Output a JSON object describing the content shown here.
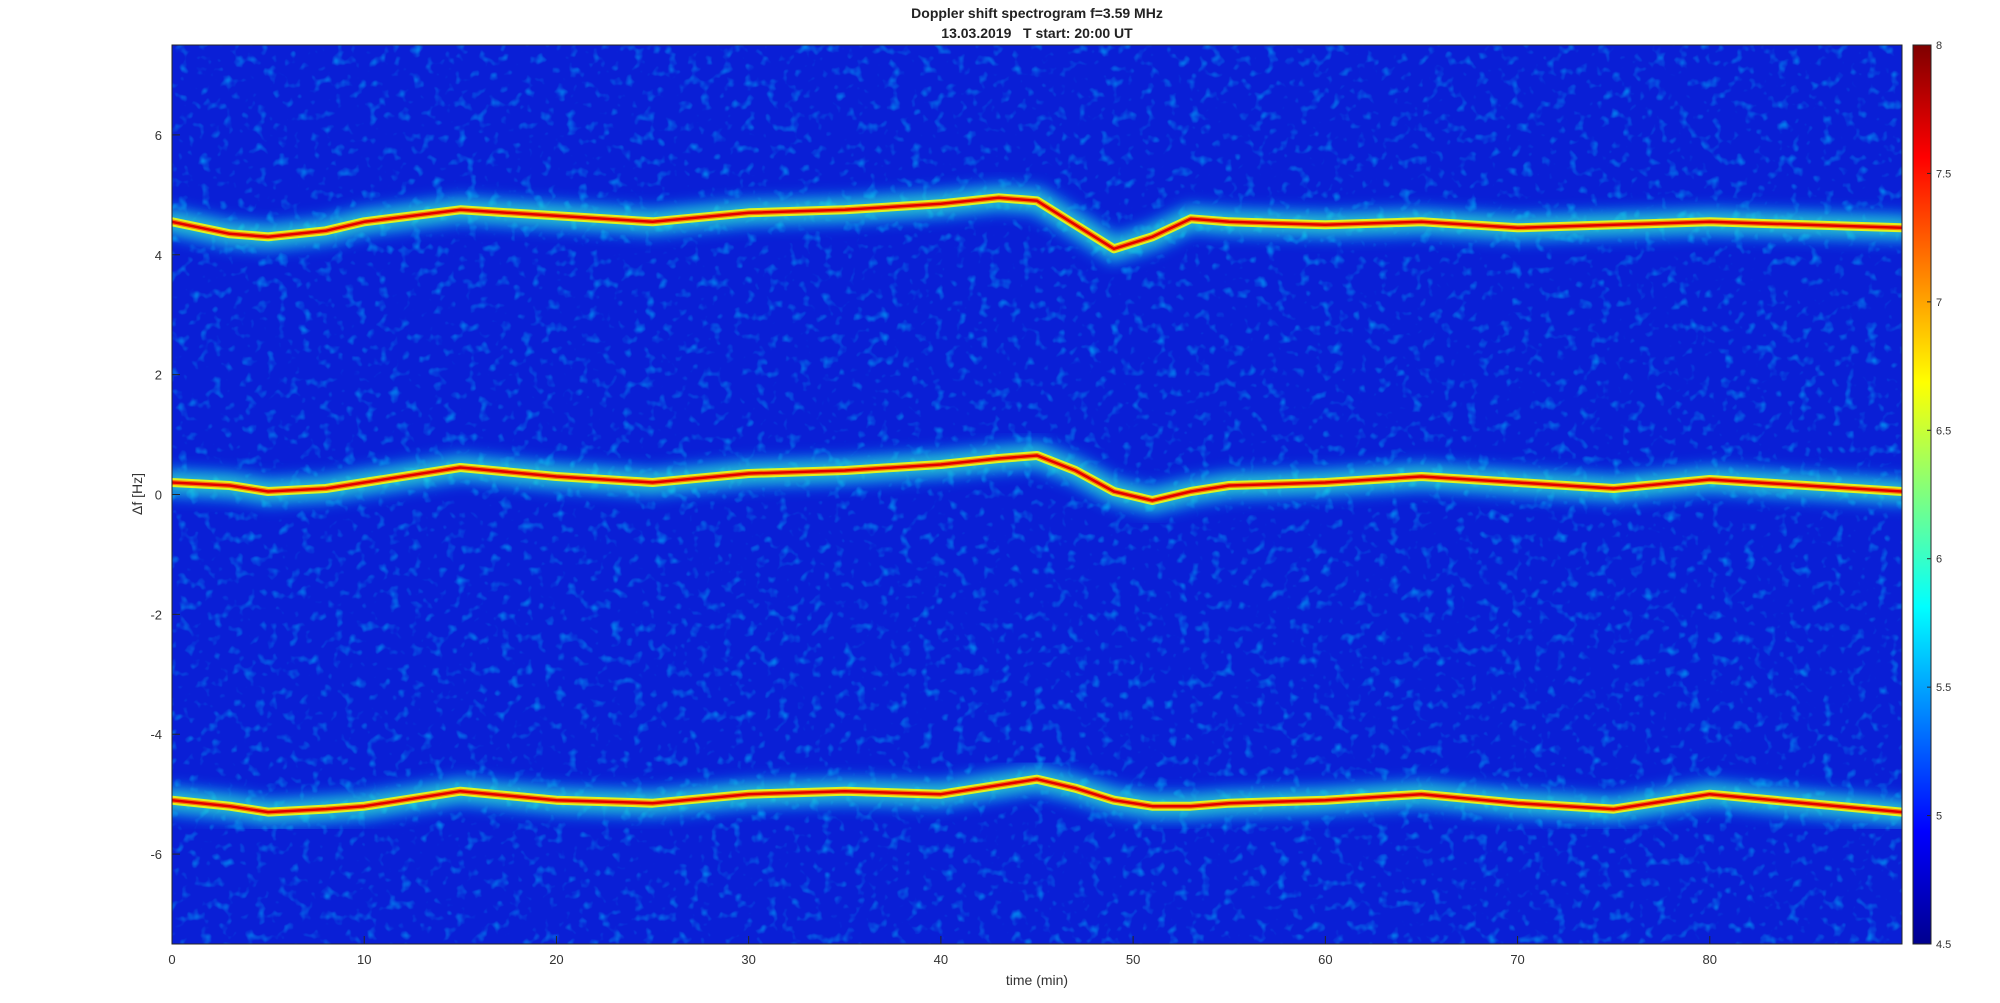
{
  "chart_data": {
    "type": "heatmap",
    "title": "Doppler shift spectrogram f=3.59 MHz",
    "subtitle": "13.03.2019   T start: 20:00 UT",
    "xlabel": "time (min)",
    "ylabel": "Δf [Hz]",
    "xlim": [
      0,
      90
    ],
    "ylim": [
      -7.5,
      7.5
    ],
    "x_ticks": [
      0,
      10,
      20,
      30,
      40,
      50,
      60,
      70,
      80
    ],
    "y_ticks": [
      -6,
      -4,
      -2,
      0,
      2,
      4,
      6
    ],
    "colorbar": {
      "colormap": "jet",
      "range": [
        4.5,
        8
      ],
      "ticks": [
        4.5,
        5,
        5.5,
        6,
        6.5,
        7,
        7.5,
        8
      ]
    },
    "series": [
      {
        "x": [
          0,
          3,
          5,
          8,
          10,
          15,
          20,
          25,
          30,
          35,
          40,
          43,
          45,
          47,
          49,
          51,
          53,
          55,
          60,
          65,
          70,
          75,
          80,
          85,
          90
        ],
        "values": [
          4.55,
          4.35,
          4.3,
          4.4,
          4.55,
          4.75,
          4.65,
          4.55,
          4.7,
          4.75,
          4.85,
          4.95,
          4.9,
          4.5,
          4.1,
          4.3,
          4.6,
          4.55,
          4.5,
          4.55,
          4.45,
          4.5,
          4.55,
          4.5,
          4.45
        ]
      },
      {
        "x": [
          0,
          3,
          5,
          8,
          10,
          15,
          20,
          25,
          30,
          35,
          40,
          43,
          45,
          47,
          49,
          51,
          53,
          55,
          60,
          65,
          70,
          75,
          80,
          85,
          90
        ],
        "values": [
          0.2,
          0.15,
          0.05,
          0.1,
          0.2,
          0.45,
          0.3,
          0.2,
          0.35,
          0.4,
          0.5,
          0.6,
          0.65,
          0.4,
          0.05,
          -0.1,
          0.05,
          0.15,
          0.2,
          0.3,
          0.2,
          0.1,
          0.25,
          0.15,
          0.05
        ]
      },
      {
        "x": [
          0,
          3,
          5,
          8,
          10,
          15,
          20,
          25,
          30,
          35,
          40,
          43,
          45,
          47,
          49,
          51,
          53,
          55,
          60,
          65,
          70,
          75,
          80,
          85,
          90
        ],
        "values": [
          -5.1,
          -5.2,
          -5.3,
          -5.25,
          -5.2,
          -4.95,
          -5.1,
          -5.15,
          -5.0,
          -4.95,
          -5.0,
          -4.85,
          -4.75,
          -4.9,
          -5.1,
          -5.2,
          -5.2,
          -5.15,
          -5.1,
          -5.0,
          -5.15,
          -5.25,
          -5.0,
          -5.15,
          -5.3
        ]
      }
    ]
  }
}
